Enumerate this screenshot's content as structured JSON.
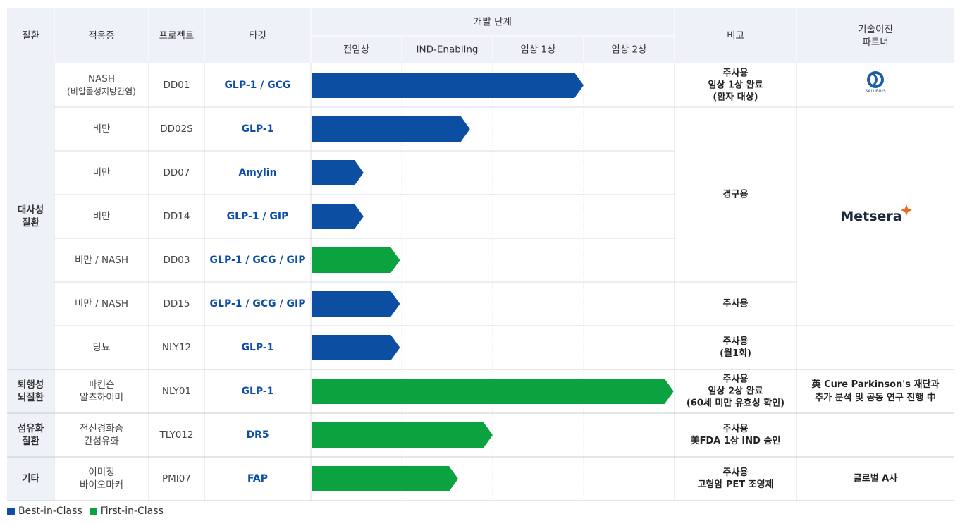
{
  "colors": {
    "best_in_class": "#0b4ea2",
    "first_in_class": "#0aa33f",
    "target_text": "#0d4fa8",
    "header_bg": "#eef2f8"
  },
  "headers": {
    "disease": "질환",
    "indication": "적응증",
    "project": "프로젝트",
    "target": "타깃",
    "stage_group": "개발 단계",
    "remarks": "비고",
    "partner": [
      "기술이전",
      "파트너"
    ]
  },
  "chart_data": {
    "type": "bar",
    "orientation": "horizontal",
    "stages": [
      "전임상",
      "IND-Enabling",
      "임상 1상",
      "임상 2상"
    ],
    "xlim": [
      0,
      4
    ],
    "categories": [
      "DD01",
      "DD02S",
      "DD07",
      "DD14",
      "DD03",
      "DD15",
      "NLY12",
      "NLY01",
      "TLY012",
      "PMI07"
    ],
    "series": [
      {
        "name": "Best-in-Class",
        "color": "#0b4ea2"
      },
      {
        "name": "First-in-Class",
        "color": "#0aa33f"
      }
    ],
    "rows": [
      {
        "indication": [
          "NASH",
          "(비알콜성지방간염)"
        ],
        "project": "DD01",
        "target": "GLP-1 / GCG",
        "progress": 3.0,
        "class": "Best-in-Class"
      },
      {
        "indication": [
          "비만"
        ],
        "project": "DD02S",
        "target": "GLP-1",
        "progress": 1.75,
        "class": "Best-in-Class"
      },
      {
        "indication": [
          "비만"
        ],
        "project": "DD07",
        "target": "Amylin",
        "progress": 0.58,
        "class": "Best-in-Class"
      },
      {
        "indication": [
          "비만"
        ],
        "project": "DD14",
        "target": "GLP-1 / GIP",
        "progress": 0.58,
        "class": "Best-in-Class"
      },
      {
        "indication": [
          "비만 / NASH"
        ],
        "project": "DD03",
        "target": "GLP-1 / GCG / GIP",
        "progress": 0.98,
        "class": "First-in-Class"
      },
      {
        "indication": [
          "비만 / NASH"
        ],
        "project": "DD15",
        "target": "GLP-1 / GCG / GIP",
        "progress": 0.98,
        "class": "Best-in-Class"
      },
      {
        "indication": [
          "당뇨"
        ],
        "project": "NLY12",
        "target": "GLP-1",
        "progress": 0.98,
        "class": "Best-in-Class"
      },
      {
        "indication": [
          "파킨슨",
          "알츠하이머"
        ],
        "project": "NLY01",
        "target": "GLP-1",
        "progress": 3.99,
        "class": "First-in-Class"
      },
      {
        "indication": [
          "전신경화증",
          "간섬유화"
        ],
        "project": "TLY012",
        "target": "DR5",
        "progress": 2.0,
        "class": "First-in-Class"
      },
      {
        "indication": [
          "이미징",
          "바이오마커"
        ],
        "project": "PMI07",
        "target": "FAP",
        "progress": 1.62,
        "class": "First-in-Class"
      }
    ],
    "disease_groups": [
      {
        "label": [
          "대사성",
          "질환"
        ],
        "rows": [
          0,
          6
        ]
      },
      {
        "label": [
          "퇴행성",
          "뇌질환"
        ],
        "rows": [
          7,
          7
        ]
      },
      {
        "label": [
          "섬유화",
          "질환"
        ],
        "rows": [
          8,
          8
        ]
      },
      {
        "label": [
          "기타"
        ],
        "rows": [
          9,
          9
        ]
      }
    ],
    "remarks": [
      {
        "lines": [
          "주사용",
          "임상 1상 완료",
          "(환자 대상)"
        ],
        "rows": [
          0,
          0
        ]
      },
      {
        "lines": [
          "경구용"
        ],
        "rows": [
          1,
          4
        ]
      },
      {
        "lines": [
          "주사용"
        ],
        "rows": [
          5,
          5
        ]
      },
      {
        "lines": [
          "주사용",
          "(월1회)"
        ],
        "rows": [
          6,
          6
        ]
      },
      {
        "lines": [
          "주사용",
          "임상 2상 완료",
          "(60세 미만 유효성 확인)"
        ],
        "rows": [
          7,
          7
        ]
      },
      {
        "lines": [
          "주사용",
          "美FDA 1상 IND 승인"
        ],
        "rows": [
          8,
          8
        ]
      },
      {
        "lines": [
          "주사용",
          "고형암 PET 조영제"
        ],
        "rows": [
          9,
          9
        ]
      }
    ],
    "partners": [
      {
        "type": "logo",
        "name": "salubris-logo",
        "text": "SALUBRIS",
        "rows": [
          0,
          0
        ]
      },
      {
        "type": "logo",
        "name": "metsera-logo",
        "text": "Metsera",
        "rows": [
          1,
          5
        ]
      },
      {
        "type": "empty",
        "rows": [
          6,
          6
        ]
      },
      {
        "type": "text",
        "lines": [
          "英 Cure Parkinson's 재단과",
          "추가 분석 및 공동 연구 진행 中"
        ],
        "rows": [
          7,
          7
        ]
      },
      {
        "type": "empty",
        "rows": [
          8,
          8
        ]
      },
      {
        "type": "text",
        "lines": [
          "글로벌 A사"
        ],
        "rows": [
          9,
          9
        ]
      }
    ]
  },
  "legend": {
    "best": "Best-in-Class",
    "first": "First-in-Class"
  }
}
